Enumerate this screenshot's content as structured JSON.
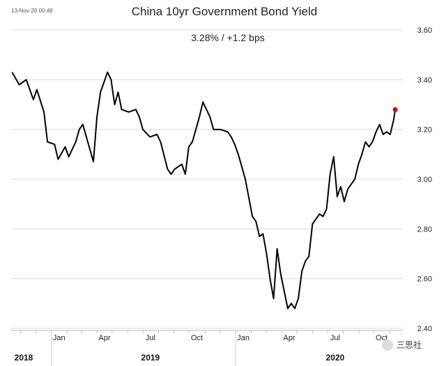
{
  "timestamp": "13-Nov-20 00:48",
  "watermark": "三思社",
  "chart_data": {
    "type": "line",
    "title": "China 10yr Government Bond Yield",
    "subtitle": "3.28%  /  +1.2 bps",
    "xlabel": "",
    "ylabel": "",
    "ylim": [
      2.4,
      3.6
    ],
    "y_ticks": [
      2.4,
      2.6,
      2.8,
      3.0,
      3.2,
      3.4,
      3.6
    ],
    "y_tick_labels": [
      "2.40",
      "2.60",
      "2.80",
      "3.00",
      "3.20",
      "3.40",
      "3.60"
    ],
    "grid": true,
    "x_month_ticks": [
      {
        "label": "Jan",
        "date": "2019-01"
      },
      {
        "label": "Apr",
        "date": "2019-04"
      },
      {
        "label": "Jul",
        "date": "2019-07"
      },
      {
        "label": "Oct",
        "date": "2019-10"
      },
      {
        "label": "Jan",
        "date": "2020-01"
      },
      {
        "label": "Apr",
        "date": "2020-04"
      },
      {
        "label": "Jul",
        "date": "2020-07"
      },
      {
        "label": "Oct",
        "date": "2020-10"
      }
    ],
    "x_year_labels": [
      {
        "label": "2018",
        "date": "2018-12"
      },
      {
        "label": "2019",
        "date": "2019-07"
      },
      {
        "label": "2020",
        "date": "2020-07"
      }
    ],
    "series": [
      {
        "color": "#000000",
        "last_point_color": "#dd0000",
        "points": [
          [
            "2018-10-15",
            3.43
          ],
          [
            "2018-10-29",
            3.38
          ],
          [
            "2018-11-12",
            3.4
          ],
          [
            "2018-11-26",
            3.32
          ],
          [
            "2018-12-03",
            3.36
          ],
          [
            "2018-12-17",
            3.27
          ],
          [
            "2018-12-24",
            3.15
          ],
          [
            "2019-01-07",
            3.14
          ],
          [
            "2019-01-14",
            3.08
          ],
          [
            "2019-01-28",
            3.13
          ],
          [
            "2019-02-04",
            3.09
          ],
          [
            "2019-02-18",
            3.15
          ],
          [
            "2019-02-25",
            3.2
          ],
          [
            "2019-03-04",
            3.22
          ],
          [
            "2019-03-18",
            3.12
          ],
          [
            "2019-03-25",
            3.07
          ],
          [
            "2019-04-01",
            3.25
          ],
          [
            "2019-04-08",
            3.35
          ],
          [
            "2019-04-22",
            3.43
          ],
          [
            "2019-04-29",
            3.4
          ],
          [
            "2019-05-06",
            3.3
          ],
          [
            "2019-05-13",
            3.35
          ],
          [
            "2019-05-20",
            3.28
          ],
          [
            "2019-06-03",
            3.27
          ],
          [
            "2019-06-17",
            3.28
          ],
          [
            "2019-06-24",
            3.25
          ],
          [
            "2019-07-01",
            3.2
          ],
          [
            "2019-07-15",
            3.17
          ],
          [
            "2019-07-29",
            3.18
          ],
          [
            "2019-08-05",
            3.15
          ],
          [
            "2019-08-19",
            3.04
          ],
          [
            "2019-08-26",
            3.02
          ],
          [
            "2019-09-02",
            3.04
          ],
          [
            "2019-09-16",
            3.06
          ],
          [
            "2019-09-23",
            3.02
          ],
          [
            "2019-09-30",
            3.13
          ],
          [
            "2019-10-07",
            3.15
          ],
          [
            "2019-10-21",
            3.25
          ],
          [
            "2019-10-28",
            3.31
          ],
          [
            "2019-11-04",
            3.28
          ],
          [
            "2019-11-11",
            3.25
          ],
          [
            "2019-11-18",
            3.2
          ],
          [
            "2019-12-02",
            3.2
          ],
          [
            "2019-12-16",
            3.19
          ],
          [
            "2019-12-23",
            3.17
          ],
          [
            "2019-12-30",
            3.14
          ],
          [
            "2020-01-06",
            3.1
          ],
          [
            "2020-01-13",
            3.05
          ],
          [
            "2020-01-20",
            3.0
          ],
          [
            "2020-02-03",
            2.85
          ],
          [
            "2020-02-10",
            2.83
          ],
          [
            "2020-02-17",
            2.77
          ],
          [
            "2020-02-24",
            2.78
          ],
          [
            "2020-03-02",
            2.7
          ],
          [
            "2020-03-09",
            2.6
          ],
          [
            "2020-03-16",
            2.52
          ],
          [
            "2020-03-23",
            2.72
          ],
          [
            "2020-03-30",
            2.62
          ],
          [
            "2020-04-06",
            2.55
          ],
          [
            "2020-04-13",
            2.48
          ],
          [
            "2020-04-20",
            2.5
          ],
          [
            "2020-04-27",
            2.48
          ],
          [
            "2020-05-04",
            2.52
          ],
          [
            "2020-05-11",
            2.63
          ],
          [
            "2020-05-18",
            2.67
          ],
          [
            "2020-05-25",
            2.69
          ],
          [
            "2020-06-01",
            2.82
          ],
          [
            "2020-06-15",
            2.86
          ],
          [
            "2020-06-22",
            2.85
          ],
          [
            "2020-06-29",
            2.88
          ],
          [
            "2020-07-06",
            3.02
          ],
          [
            "2020-07-13",
            3.09
          ],
          [
            "2020-07-20",
            2.93
          ],
          [
            "2020-07-27",
            2.97
          ],
          [
            "2020-08-03",
            2.91
          ],
          [
            "2020-08-10",
            2.96
          ],
          [
            "2020-08-17",
            2.98
          ],
          [
            "2020-08-24",
            3.0
          ],
          [
            "2020-08-31",
            3.06
          ],
          [
            "2020-09-07",
            3.1
          ],
          [
            "2020-09-14",
            3.15
          ],
          [
            "2020-09-21",
            3.13
          ],
          [
            "2020-09-28",
            3.15
          ],
          [
            "2020-10-05",
            3.19
          ],
          [
            "2020-10-12",
            3.22
          ],
          [
            "2020-10-19",
            3.18
          ],
          [
            "2020-10-26",
            3.19
          ],
          [
            "2020-11-02",
            3.18
          ],
          [
            "2020-11-09",
            3.24
          ],
          [
            "2020-11-12",
            3.28
          ]
        ]
      }
    ]
  }
}
